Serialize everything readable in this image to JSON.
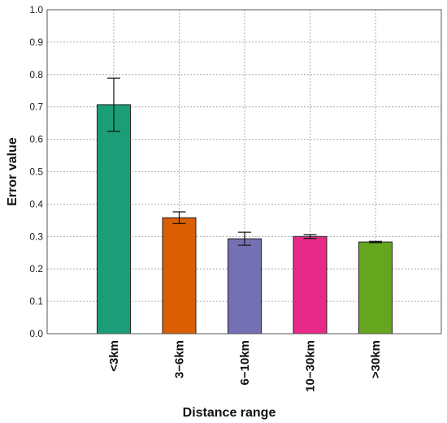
{
  "chart_data": {
    "type": "bar",
    "title": "",
    "xlabel": "Distance range",
    "ylabel": "Error value",
    "categories": [
      "<3km",
      "3−6km",
      "6−10km",
      "10−30km",
      ">30km"
    ],
    "values": [
      0.707,
      0.358,
      0.293,
      0.3,
      0.283
    ],
    "error": [
      0.082,
      0.018,
      0.02,
      0.006,
      0.002
    ],
    "colors": [
      "#1b9e77",
      "#d95f02",
      "#7570b3",
      "#e7298a",
      "#66a61e"
    ],
    "ylim": [
      0,
      1.0
    ],
    "yticks": [
      "0.0",
      "0.1",
      "0.2",
      "0.3",
      "0.4",
      "0.5",
      "0.6",
      "0.7",
      "0.8",
      "0.9",
      "1.0"
    ],
    "grid": true,
    "legend": "none"
  }
}
